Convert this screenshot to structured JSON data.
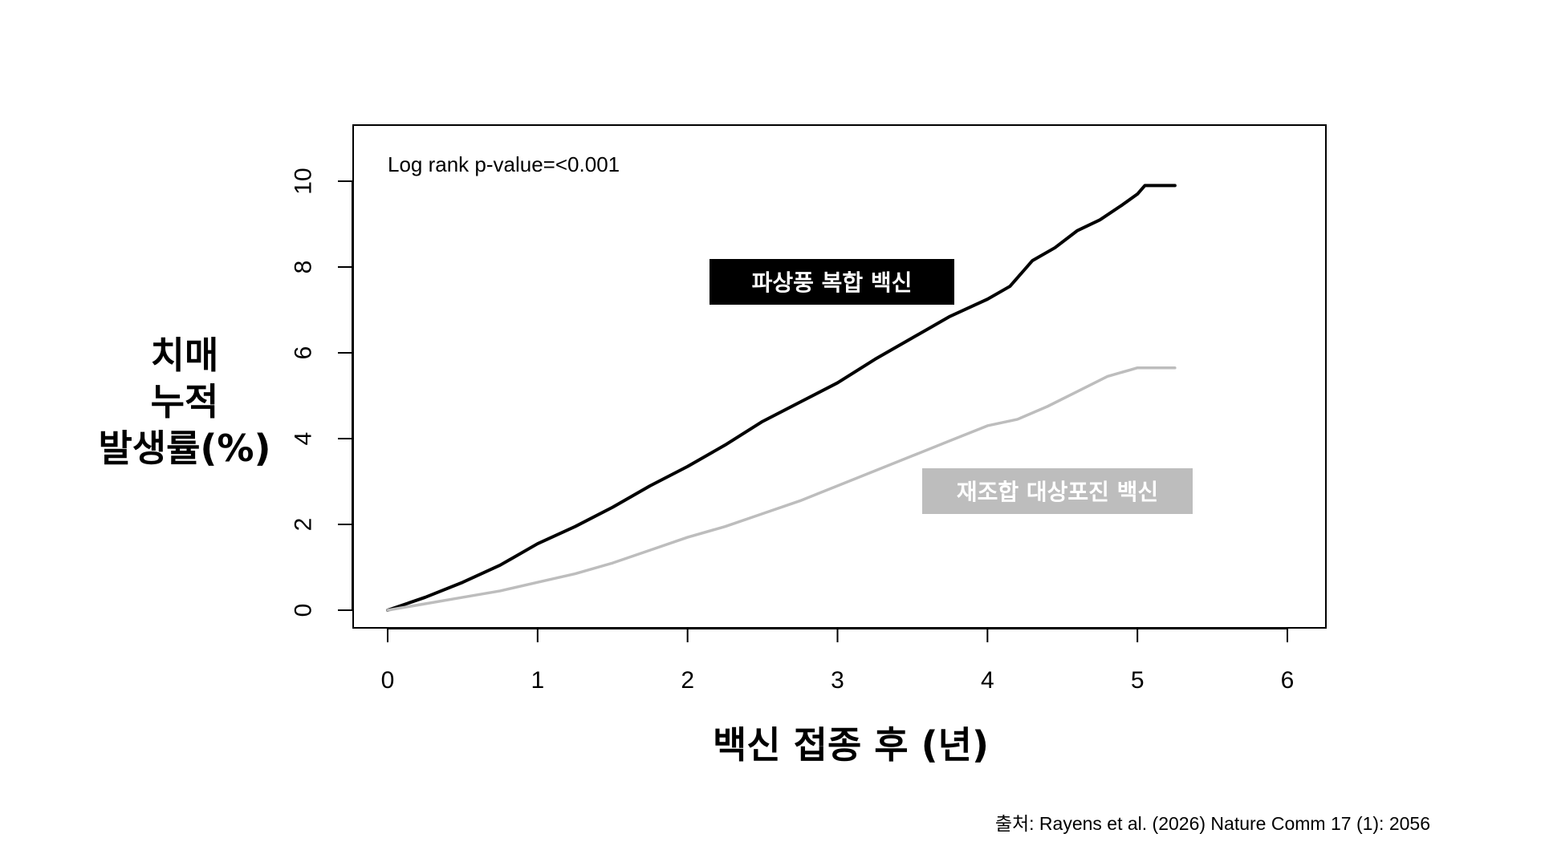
{
  "chart_data": {
    "type": "line",
    "title": "",
    "xlabel": "백신 접종 후 (년)",
    "ylabel_lines": [
      "치매",
      "누적",
      "발생률(%)"
    ],
    "xlim": [
      0,
      6
    ],
    "ylim": [
      0,
      10
    ],
    "x_ticks": [
      "0",
      "1",
      "2",
      "3",
      "4",
      "5",
      "6"
    ],
    "y_ticks": [
      "0",
      "2",
      "4",
      "6",
      "8",
      "10"
    ],
    "annotation": "Log rank p-value=<0.001",
    "grid": false,
    "series": [
      {
        "name": "파상풍 복합 백신",
        "color": "#000000",
        "label_bg": "#000000",
        "label_fg": "#ffffff",
        "x": [
          0,
          0.25,
          0.5,
          0.75,
          1.0,
          1.25,
          1.5,
          1.75,
          2.0,
          2.25,
          2.5,
          2.75,
          3.0,
          3.25,
          3.5,
          3.75,
          4.0,
          4.15,
          4.3,
          4.45,
          4.6,
          4.75,
          4.9,
          5.0,
          5.05,
          5.25
        ],
        "y": [
          0,
          0.3,
          0.65,
          1.05,
          1.55,
          1.95,
          2.4,
          2.9,
          3.35,
          3.85,
          4.4,
          4.85,
          5.3,
          5.85,
          6.35,
          6.85,
          7.25,
          7.55,
          8.15,
          8.45,
          8.85,
          9.1,
          9.45,
          9.7,
          9.9,
          9.9
        ]
      },
      {
        "name": "재조합 대상포진 백신",
        "color": "#bdbdbd",
        "label_bg": "#bdbdbd",
        "label_fg": "#ffffff",
        "x": [
          0,
          0.25,
          0.5,
          0.75,
          1.0,
          1.25,
          1.5,
          1.75,
          2.0,
          2.25,
          2.5,
          2.75,
          3.0,
          3.25,
          3.5,
          3.75,
          4.0,
          4.2,
          4.4,
          4.6,
          4.8,
          4.95,
          5.0,
          5.25
        ],
        "y": [
          0,
          0.15,
          0.3,
          0.45,
          0.65,
          0.85,
          1.1,
          1.4,
          1.7,
          1.95,
          2.25,
          2.55,
          2.9,
          3.25,
          3.6,
          3.95,
          4.3,
          4.45,
          4.75,
          5.1,
          5.45,
          5.6,
          5.65,
          5.65
        ]
      }
    ]
  },
  "source": "출처: Rayens et al. (2026) Nature Comm 17 (1): 2056"
}
